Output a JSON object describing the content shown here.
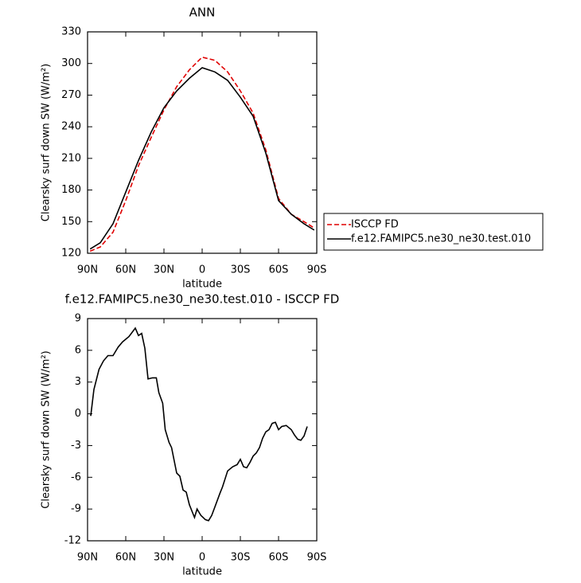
{
  "chart_data": [
    {
      "type": "line",
      "title": "ANN",
      "x_label": "latitude",
      "y_label": "Clearsky surf down SW (W/m²)",
      "xlim": [
        90,
        -90
      ],
      "ylim": [
        120,
        330
      ],
      "xticks": [
        {
          "value": 90,
          "label": "90N"
        },
        {
          "value": 60,
          "label": "60N"
        },
        {
          "value": 30,
          "label": "30N"
        },
        0,
        {
          "value": -30,
          "label": "30S"
        },
        {
          "value": -60,
          "label": "60S"
        },
        {
          "value": -90,
          "label": "90S"
        }
      ],
      "yticks": [
        120,
        150,
        180,
        210,
        240,
        270,
        300,
        330
      ],
      "legend": "right",
      "x": [
        88,
        80,
        70,
        60,
        50,
        40,
        30,
        20,
        10,
        0,
        -10,
        -20,
        -30,
        -40,
        -50,
        -60,
        -70,
        -80,
        -88
      ],
      "series": [
        {
          "name": "ISCCP FD",
          "color": "#e00000",
          "line_style": "dashed",
          "values": [
            122,
            126,
            140,
            170,
            203,
            230,
            256,
            278,
            294,
            306,
            303,
            292,
            274,
            253,
            218,
            172,
            157,
            150,
            144
          ]
        },
        {
          "name": "f.e12.FAMIPC5.ne30_ne30.test.010",
          "color": "#000000",
          "line_style": "solid",
          "values": [
            124,
            130,
            148,
            178,
            208,
            235,
            258,
            274,
            286,
            296,
            292,
            284,
            268,
            250,
            215,
            170,
            157,
            148,
            142
          ]
        }
      ]
    },
    {
      "type": "line",
      "title": "f.e12.FAMIPC5.ne30_ne30.test.010 - ISCCP FD",
      "x_label": "latitude",
      "y_label": "Clearsky surf down SW (W/m²)",
      "xlim": [
        90,
        -90
      ],
      "ylim": [
        -12,
        9
      ],
      "xticks": [
        {
          "value": 90,
          "label": "90N"
        },
        {
          "value": 60,
          "label": "60N"
        },
        {
          "value": 30,
          "label": "30N"
        },
        0,
        {
          "value": -30,
          "label": "30S"
        },
        {
          "value": -60,
          "label": "60S"
        },
        {
          "value": -90,
          "label": "90S"
        }
      ],
      "yticks": [
        -12,
        -9,
        -6,
        -3,
        0,
        3,
        6,
        9
      ],
      "x": [
        87.5,
        85,
        81,
        77.5,
        74,
        70,
        66,
        62.5,
        57.5,
        52.5,
        50,
        47.5,
        45,
        42.5,
        39,
        36,
        34,
        31,
        29,
        26,
        24,
        20,
        17.5,
        15,
        12.5,
        10,
        6,
        4,
        1,
        -2.5,
        -5,
        -7.5,
        -10,
        -14,
        -16,
        -20,
        -24,
        -27.5,
        -30,
        -32.5,
        -35,
        -37.5,
        -40,
        -42.5,
        -45,
        -47.5,
        -50,
        -52.5,
        -55,
        -57.5,
        -60,
        -62.5,
        -66,
        -70,
        -72.5,
        -75,
        -77.5,
        -80,
        -82.5
      ],
      "series": [
        {
          "color": "#000000",
          "line_style": "solid",
          "values": [
            -0.2,
            2.3,
            4.2,
            5.0,
            5.5,
            5.5,
            6.3,
            6.8,
            7.3,
            8.1,
            7.4,
            7.6,
            6.2,
            3.3,
            3.4,
            3.4,
            2.0,
            1.0,
            -1.5,
            -2.7,
            -3.2,
            -5.6,
            -5.9,
            -7.2,
            -7.4,
            -8.6,
            -9.8,
            -9.0,
            -9.6,
            -10.0,
            -10.1,
            -9.6,
            -8.8,
            -7.5,
            -6.9,
            -5.4,
            -5.0,
            -4.8,
            -4.3,
            -5.0,
            -5.1,
            -4.6,
            -4.0,
            -3.7,
            -3.2,
            -2.3,
            -1.7,
            -1.5,
            -0.9,
            -0.8,
            -1.5,
            -1.2,
            -1.1,
            -1.5,
            -2.0,
            -2.4,
            -2.5,
            -2.1,
            -1.2
          ]
        }
      ]
    }
  ]
}
